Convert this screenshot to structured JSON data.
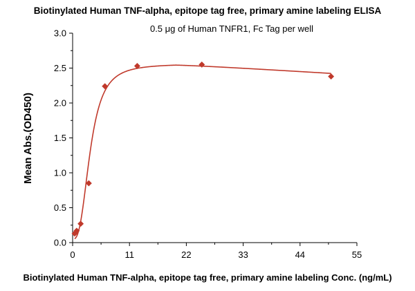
{
  "chart_data": {
    "type": "scatter",
    "title": "Biotinylated Human TNF-alpha, epitope tag free, primary amine labeling ELISA",
    "subtitle": "0.5 μg of Human TNFR1, Fc Tag per well",
    "xlabel": "Biotinylated Human TNF-alpha, epitope tag free, primary amine labeling Conc. (ng/mL)",
    "ylabel": "Mean Abs.(OD450)",
    "xlim": [
      0,
      55
    ],
    "ylim": [
      0,
      3.0
    ],
    "xticks": [
      0,
      11,
      22,
      33,
      44,
      55
    ],
    "yticks": [
      0.0,
      0.5,
      1.0,
      1.5,
      2.0,
      2.5,
      3.0
    ],
    "xtick_labels": [
      "0",
      "11",
      "22",
      "33",
      "44",
      "55"
    ],
    "ytick_labels": [
      "0.0",
      "0.5",
      "1.0",
      "1.5",
      "2.0",
      "2.5",
      "3.0"
    ],
    "series": [
      {
        "color": "#c0392b",
        "marker": "diamond",
        "x": [
          0.39,
          0.78,
          1.56,
          3.125,
          6.25,
          12.5,
          25,
          50
        ],
        "y": [
          0.13,
          0.17,
          0.27,
          0.85,
          2.24,
          2.53,
          2.55,
          2.38
        ],
        "fit_curve": true
      }
    ],
    "grid": false
  }
}
